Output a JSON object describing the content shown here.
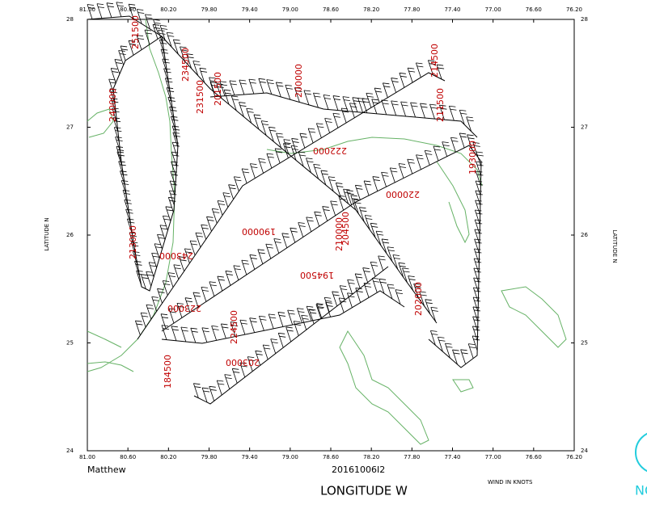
{
  "map": {
    "lon_labels": [
      "81.00",
      "80.60",
      "80.20",
      "79.80",
      "79.40",
      "79.00",
      "78.60",
      "78.20",
      "77.80",
      "77.40",
      "77.00",
      "76.60",
      "76.20"
    ],
    "lat_labels": [
      "28",
      "27",
      "26",
      "25",
      "24"
    ],
    "x_axis_label": "LONGITUDE  W",
    "y_axis_label": "LATITUDE  N",
    "storm_name": "Matthew",
    "mission_id": "20161006I2",
    "wind_units": "WIND IN KNOTS",
    "logo_text": "NO",
    "time_labels": [
      "251500",
      "240000",
      "234500",
      "231500",
      "201500",
      "200000",
      "214500",
      "211500",
      "222000",
      "220000",
      "193000",
      "213000",
      "243000",
      "194500",
      "204500",
      "210000",
      "223000",
      "224500",
      "203000",
      "184500",
      "190000",
      "202000"
    ]
  }
}
